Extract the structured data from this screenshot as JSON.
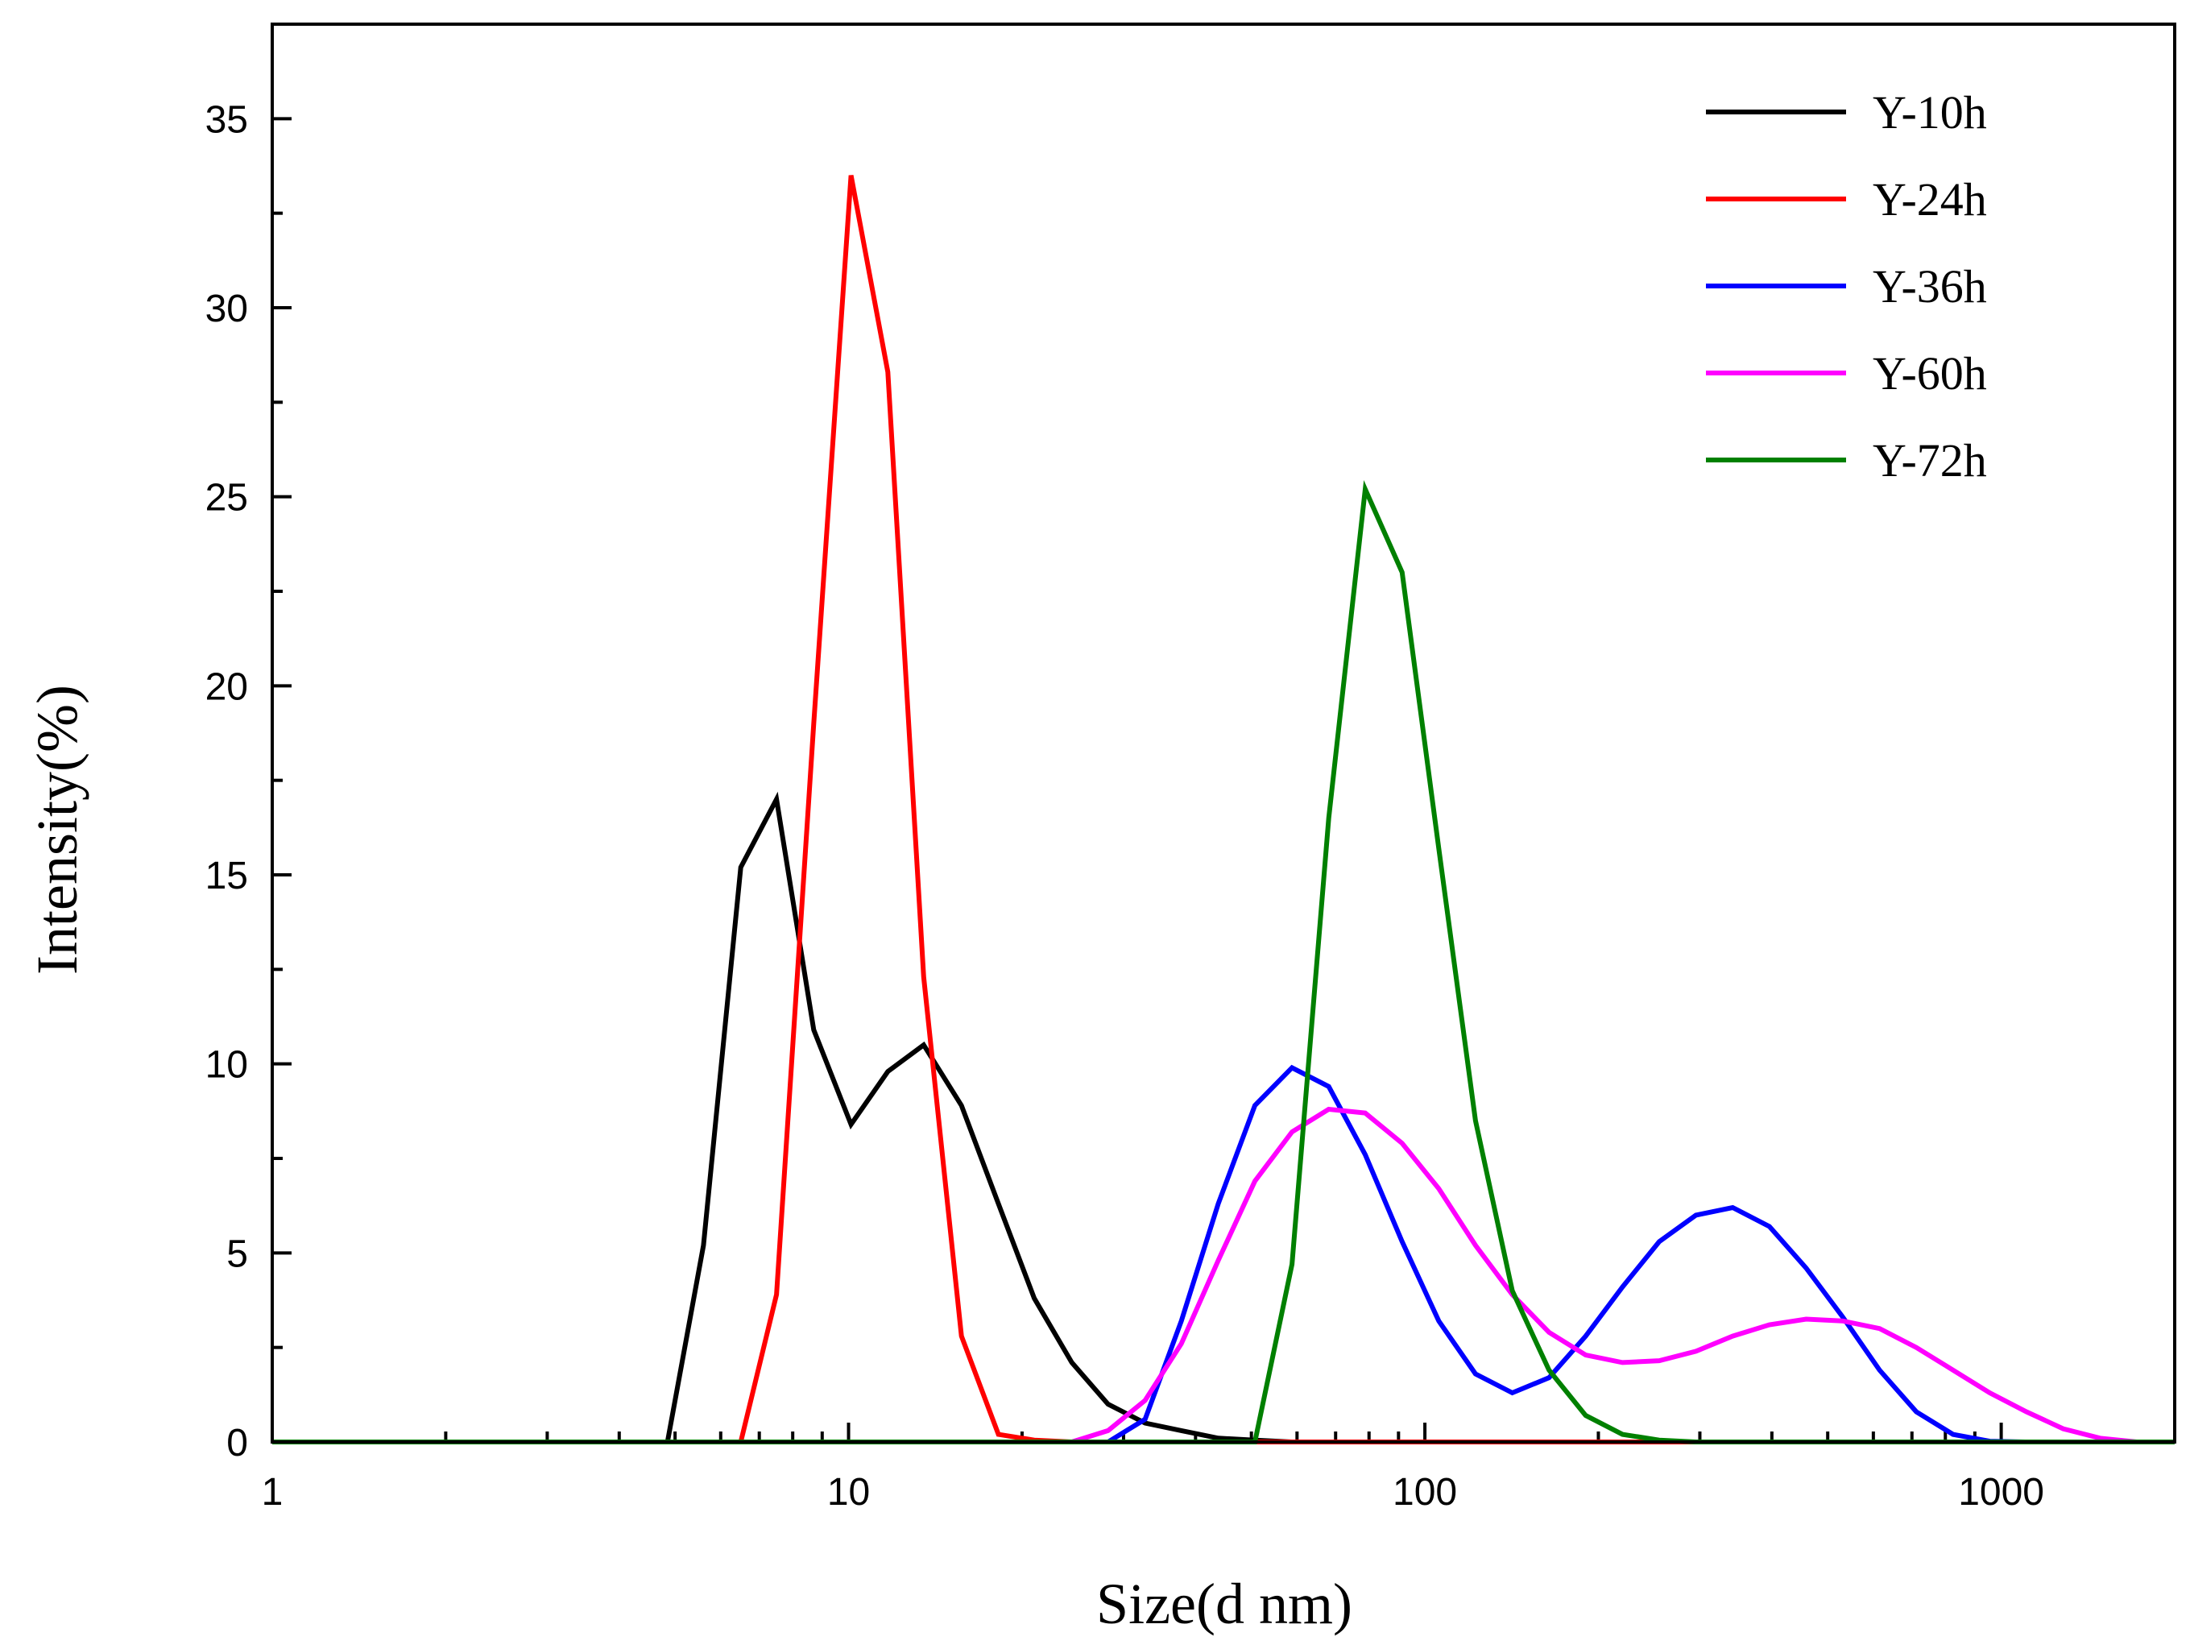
{
  "chart_data": {
    "type": "line",
    "title": "",
    "xlabel": "Size(d nm)",
    "ylabel": "Intensity(%)",
    "xscale": "log",
    "xlim": [
      1,
      2000
    ],
    "ylim": [
      0,
      37.5
    ],
    "x_ticks": [
      1,
      10,
      100,
      1000
    ],
    "x_tick_labels": [
      "1",
      "10",
      "100",
      "1000"
    ],
    "y_ticks": [
      0,
      5,
      10,
      15,
      20,
      25,
      30,
      35
    ],
    "y_tick_labels": [
      "0",
      "5",
      "10",
      "15",
      "20",
      "25",
      "30",
      "35"
    ],
    "legend_position": "top-right",
    "series": [
      {
        "name": "Y-10h",
        "color": "#000000",
        "points": [
          [
            1,
            0
          ],
          [
            4.85,
            0
          ],
          [
            5.6,
            5.2
          ],
          [
            6.5,
            15.2
          ],
          [
            7.5,
            17.0
          ],
          [
            8.7,
            10.9
          ],
          [
            10.1,
            8.4
          ],
          [
            11.7,
            9.8
          ],
          [
            13.5,
            10.5
          ],
          [
            15.7,
            8.9
          ],
          [
            18.2,
            6.3
          ],
          [
            21.0,
            3.8
          ],
          [
            24.4,
            2.1
          ],
          [
            28.2,
            1.0
          ],
          [
            32.7,
            0.5
          ],
          [
            37.8,
            0.3
          ],
          [
            43.8,
            0.1
          ],
          [
            50.7,
            0.05
          ],
          [
            58.8,
            0
          ],
          [
            2000,
            0
          ]
        ]
      },
      {
        "name": "Y-24h",
        "color": "#ff0000",
        "points": [
          [
            1,
            0
          ],
          [
            6.5,
            0
          ],
          [
            7.5,
            3.9
          ],
          [
            8.7,
            19.0
          ],
          [
            10.1,
            33.5
          ],
          [
            11.7,
            28.3
          ],
          [
            13.5,
            12.3
          ],
          [
            15.7,
            2.8
          ],
          [
            18.2,
            0.2
          ],
          [
            21.0,
            0.05
          ],
          [
            24.4,
            0
          ],
          [
            2000,
            0
          ]
        ]
      },
      {
        "name": "Y-36h",
        "color": "#0000ff",
        "points": [
          [
            1,
            0
          ],
          [
            28.2,
            0
          ],
          [
            32.7,
            0.6
          ],
          [
            37.8,
            3.2
          ],
          [
            43.8,
            6.3
          ],
          [
            50.7,
            8.9
          ],
          [
            58.8,
            9.9
          ],
          [
            68.1,
            9.4
          ],
          [
            78.8,
            7.6
          ],
          [
            91.3,
            5.3
          ],
          [
            105.7,
            3.2
          ],
          [
            122.4,
            1.8
          ],
          [
            141.8,
            1.3
          ],
          [
            164.2,
            1.7
          ],
          [
            190.1,
            2.8
          ],
          [
            220.2,
            4.1
          ],
          [
            255.0,
            5.3
          ],
          [
            295.3,
            6.0
          ],
          [
            342.0,
            6.2
          ],
          [
            396.1,
            5.7
          ],
          [
            458.7,
            4.6
          ],
          [
            531.2,
            3.3
          ],
          [
            615.1,
            1.9
          ],
          [
            712.4,
            0.8
          ],
          [
            825.0,
            0.2
          ],
          [
            955.4,
            0.02
          ],
          [
            1100,
            0
          ],
          [
            2000,
            0
          ]
        ]
      },
      {
        "name": "Y-60h",
        "color": "#ff00ff",
        "points": [
          [
            1,
            0
          ],
          [
            24.4,
            0
          ],
          [
            28.2,
            0.3
          ],
          [
            32.7,
            1.1
          ],
          [
            37.8,
            2.6
          ],
          [
            43.8,
            4.8
          ],
          [
            50.7,
            6.9
          ],
          [
            58.8,
            8.2
          ],
          [
            68.1,
            8.8
          ],
          [
            78.8,
            8.7
          ],
          [
            91.3,
            7.9
          ],
          [
            105.7,
            6.7
          ],
          [
            122.4,
            5.2
          ],
          [
            141.8,
            3.9
          ],
          [
            164.2,
            2.9
          ],
          [
            190.1,
            2.3
          ],
          [
            220.2,
            2.1
          ],
          [
            255.0,
            2.15
          ],
          [
            295.3,
            2.4
          ],
          [
            342.0,
            2.8
          ],
          [
            396.1,
            3.1
          ],
          [
            458.7,
            3.25
          ],
          [
            531.2,
            3.2
          ],
          [
            615.1,
            3.0
          ],
          [
            712.4,
            2.5
          ],
          [
            825.0,
            1.9
          ],
          [
            955.4,
            1.3
          ],
          [
            1106,
            0.8
          ],
          [
            1281,
            0.35
          ],
          [
            1484,
            0.1
          ],
          [
            1718,
            0
          ],
          [
            2000,
            0
          ]
        ]
      },
      {
        "name": "Y-72h",
        "color": "#008000",
        "points": [
          [
            1,
            0
          ],
          [
            50.7,
            0
          ],
          [
            58.8,
            4.7
          ],
          [
            68.1,
            16.5
          ],
          [
            78.8,
            25.2
          ],
          [
            91.3,
            23.0
          ],
          [
            105.7,
            15.7
          ],
          [
            122.4,
            8.5
          ],
          [
            141.8,
            4.0
          ],
          [
            164.2,
            1.9
          ],
          [
            190.1,
            0.7
          ],
          [
            220.2,
            0.2
          ],
          [
            255.0,
            0.05
          ],
          [
            295.3,
            0
          ],
          [
            2000,
            0
          ]
        ]
      }
    ]
  }
}
